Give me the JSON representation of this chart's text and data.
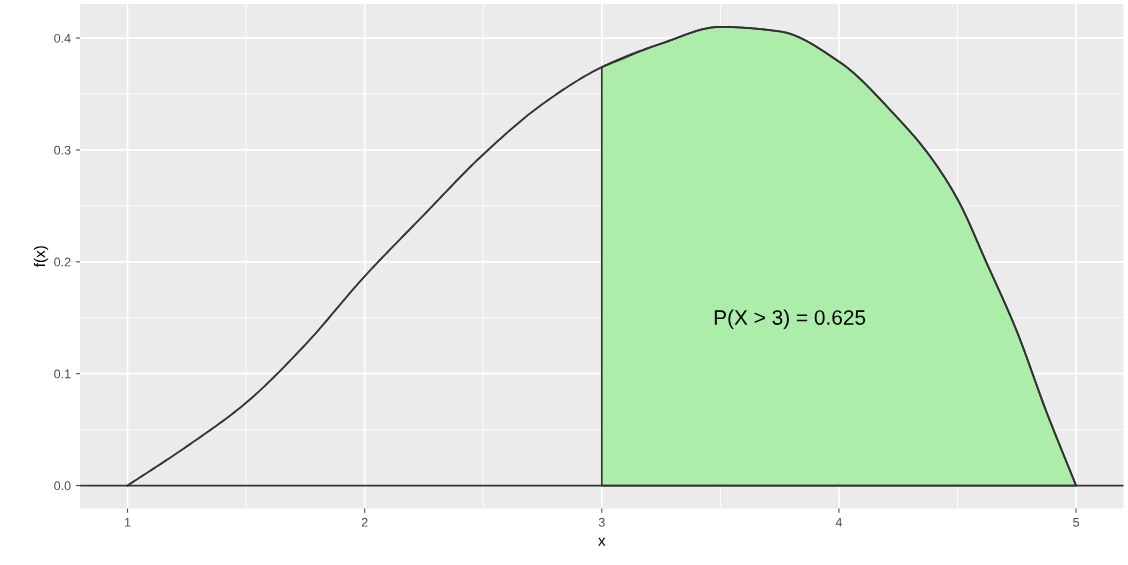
{
  "chart_data": {
    "type": "line",
    "xlabel": "x",
    "ylabel": "f(x)",
    "xlim": [
      0.8,
      5.2
    ],
    "ylim": [
      -0.0205,
      0.4305
    ],
    "xticks": [
      1,
      2,
      3,
      4,
      5
    ],
    "yticks": [
      {
        "value": 0,
        "label": "0.0"
      },
      {
        "value": 0.1,
        "label": "0.1"
      },
      {
        "value": 0.2,
        "label": "0.2"
      },
      {
        "value": 0.3,
        "label": "0.3"
      },
      {
        "value": 0.4,
        "label": "0.4"
      }
    ],
    "grid": true,
    "ref_lines": [
      {
        "axis": "y",
        "value": 0,
        "color": "#333333"
      }
    ],
    "series": [
      {
        "type": "area",
        "color": "#abeda9",
        "x": [
          3,
          3.25,
          3.5,
          3.75,
          4,
          4.25,
          4.375,
          4.5,
          4.625,
          4.75,
          4.875,
          5
        ],
        "values": [
          0.374,
          0.395,
          0.41,
          0.406,
          0.379,
          0.328,
          0.297,
          0.256,
          0.198,
          0.138,
          0.066,
          0
        ]
      },
      {
        "color": "#333333",
        "x": [
          1,
          1.25,
          1.5,
          1.75,
          2,
          2.25,
          2.5,
          2.75,
          3,
          3.25,
          3.5,
          3.75,
          4,
          4.25,
          4.375,
          4.5,
          4.625,
          4.75,
          4.875,
          5
        ],
        "values": [
          0,
          0.035,
          0.074,
          0.126,
          0.187,
          0.242,
          0.296,
          0.341,
          0.374,
          0.395,
          0.41,
          0.406,
          0.379,
          0.328,
          0.297,
          0.256,
          0.198,
          0.138,
          0.066,
          0
        ]
      }
    ],
    "annotations": [
      "P(X > 3) = 0.625"
    ]
  }
}
